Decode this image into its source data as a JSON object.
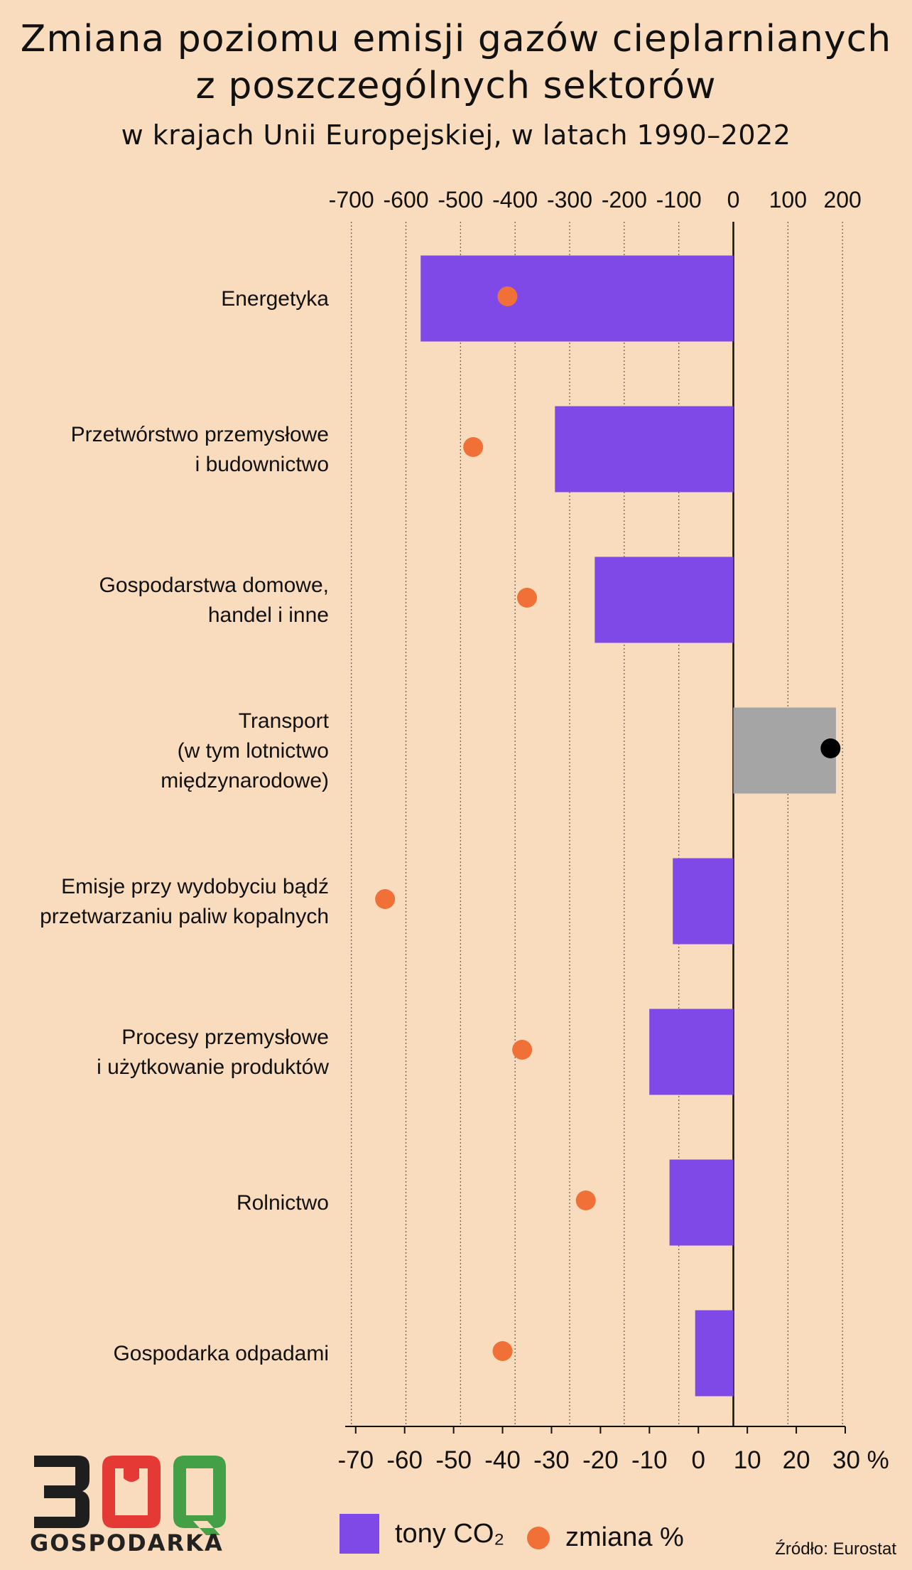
{
  "header": {
    "title_line1": "Zmiana poziomu emisji gazów cieplarnianych",
    "title_line2": "z poszczególnych sektorów",
    "subtitle": "w krajach Unii Europejskiej, w latach 1990–2022"
  },
  "chart_data": {
    "type": "bar",
    "orientation": "horizontal",
    "categories": [
      [
        "Energetyka"
      ],
      [
        "Przetwórstwo przemysłowe",
        "i budownictwo"
      ],
      [
        "Gospodarstwa domowe,",
        "handel i inne"
      ],
      [
        "Transport ",
        "(w tym lotnictwo",
        "międzynarodowe)"
      ],
      [
        "Emisje przy wydobyciu bądź",
        "przetwarzaniu paliw kopalnych"
      ],
      [
        "Procesy przemysłowe",
        "i użytkowanie produktów"
      ],
      [
        "Rolnictwo"
      ],
      [
        "Gospodarka odpadami"
      ]
    ],
    "series": [
      {
        "name": "tony CO₂",
        "axis": "top",
        "values": [
          -573,
          -327,
          -254,
          188,
          -111,
          -154,
          -117,
          -70
        ],
        "color": "#7f49e8",
        "positive_color": "#a5a5a5"
      },
      {
        "name": "zmiana %",
        "axis": "bottom",
        "values": [
          -39,
          -46,
          -35,
          27,
          -64,
          -36,
          -23,
          -40
        ],
        "color": "#f07038",
        "positive_color": "#000000"
      }
    ],
    "top_axis": {
      "ticks": [
        -700,
        -600,
        -500,
        -400,
        -300,
        -200,
        -100,
        0,
        100,
        200
      ],
      "range": [
        -710,
        205
      ]
    },
    "bottom_axis": {
      "ticks": [
        -70,
        -60,
        -50,
        -40,
        -30,
        -20,
        -10,
        0,
        10,
        20,
        30
      ],
      "labels": [
        "-70",
        "-60",
        "-50",
        "-40",
        "-30",
        "-20",
        "-10",
        "0",
        "10",
        "20",
        "30 %"
      ],
      "range": [
        -72,
        30
      ]
    },
    "grid": "vertical dotted"
  },
  "legend": {
    "bar_label": "tony CO₂",
    "dot_label": "zmiana %"
  },
  "logo": {
    "digits": "300",
    "word": "GOSPODARKA",
    "colors": [
      "#1e1e1e",
      "#e53935",
      "#43a047"
    ]
  },
  "source": "Źródło: Eurostat"
}
